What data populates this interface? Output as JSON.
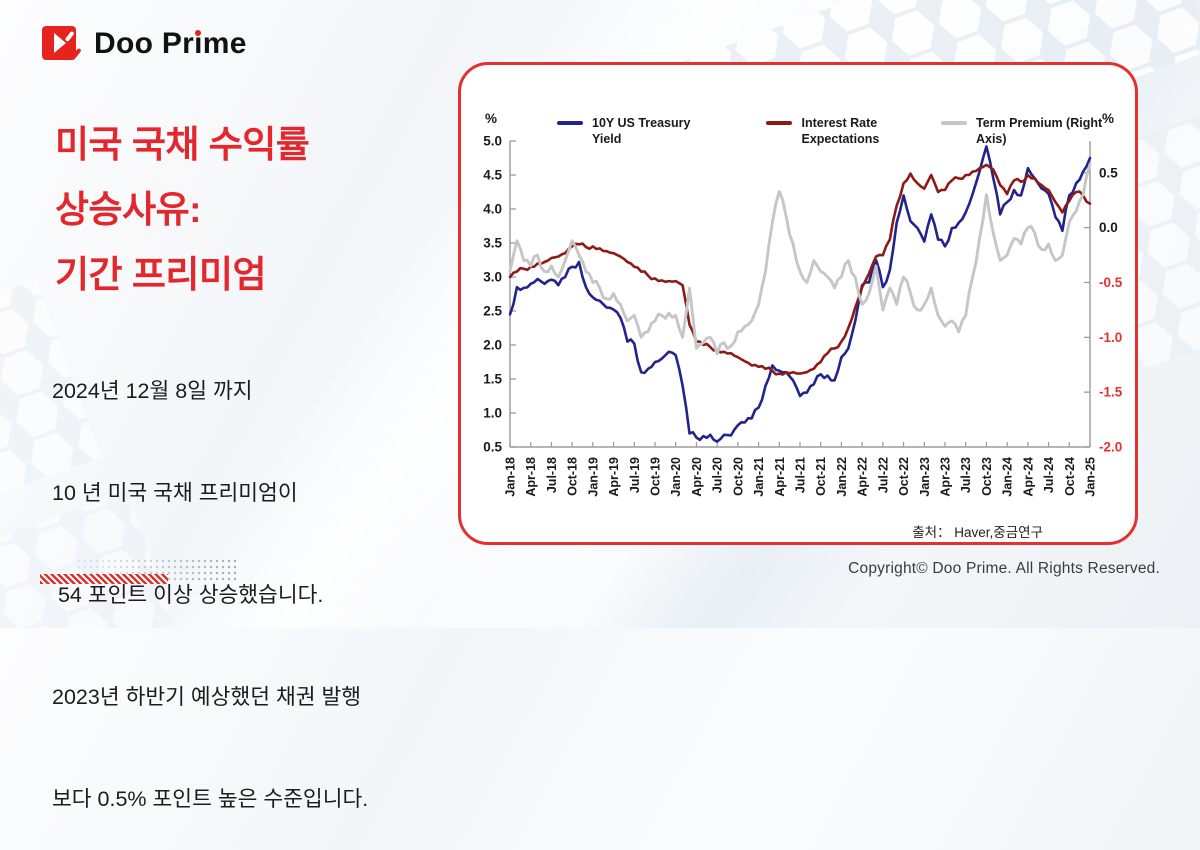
{
  "brand": {
    "name_parts": {
      "before": "Doo Pr",
      "i": "i",
      "after": "me"
    }
  },
  "headline": {
    "line1": "미국 국채 수익률",
    "line2": "상승사유:",
    "line3": "기간 프리미엄"
  },
  "description": {
    "lines": [
      "2024년 12월 8일 까지",
      "10 년 미국 국채 프리미엄이",
      " 54 포인트 이상 상승했습니다.",
      "2023년 하반기 예상했던 채권 발행",
      "보다 0.5% 포인트 높은 수준입니다."
    ]
  },
  "chart": {
    "source": "출처： Haver,중금연구",
    "accent_border_color": "#e43030"
  },
  "chart_data": {
    "type": "line",
    "title": "",
    "x_start": "Jan-18",
    "x_end": "Jan-25",
    "x_tick_labels": [
      "Jan-18",
      "Apr-18",
      "Jul-18",
      "Oct-18",
      "Jan-19",
      "Apr-19",
      "Jul-19",
      "Oct-19",
      "Jan-20",
      "Apr-20",
      "Jul-20",
      "Oct-20",
      "Jan-21",
      "Apr-21",
      "Jul-21",
      "Oct-21",
      "Jan-22",
      "Apr-22",
      "Jul-22",
      "Oct-22",
      "Jan-23",
      "Apr-23",
      "Jul-23",
      "Oct-23",
      "Jan-24",
      "Apr-24",
      "Jul-24",
      "Oct-24",
      "Jan-25"
    ],
    "months_per_tick": 3,
    "grid": false,
    "legend_position": "top",
    "left_axis": {
      "unit": "%",
      "min": 0.5,
      "max": 5.0,
      "ticks": [
        "5.0",
        "4.5",
        "4.0",
        "3.5",
        "3.0",
        "2.5",
        "2.0",
        "1.5",
        "1.0",
        "0.5"
      ],
      "tick_values": [
        5.0,
        4.5,
        4.0,
        3.5,
        3.0,
        2.5,
        2.0,
        1.5,
        1.0,
        0.5
      ],
      "tick_color": "#1a1a1a"
    },
    "right_axis": {
      "unit": "%",
      "min": -2.0,
      "max": 0.79,
      "ticks": [
        {
          "label": "0.5",
          "value": 0.5,
          "color": "#1a1a1a"
        },
        {
          "label": "0.0",
          "value": 0.0,
          "color": "#1a1a1a"
        },
        {
          "label": "-0.5",
          "value": -0.5,
          "color": "#e5312b"
        },
        {
          "label": "-1.0",
          "value": -1.0,
          "color": "#e5312b"
        },
        {
          "label": "-1.5",
          "value": -1.5,
          "color": "#e5312b"
        },
        {
          "label": "-2.0",
          "value": -2.0,
          "color": "#e5312b"
        }
      ]
    },
    "series": [
      {
        "name": "10Y US Treasury Yield",
        "axis": "left",
        "color": "#23238e",
        "width": 2.6,
        "values": [
          2.45,
          2.85,
          2.84,
          2.9,
          2.97,
          2.9,
          2.96,
          2.88,
          3.0,
          3.15,
          3.22,
          2.85,
          2.7,
          2.65,
          2.55,
          2.52,
          2.4,
          2.05,
          2.02,
          1.6,
          1.65,
          1.75,
          1.8,
          1.9,
          1.85,
          1.4,
          0.7,
          0.64,
          0.66,
          0.68,
          0.58,
          0.68,
          0.67,
          0.82,
          0.86,
          0.92,
          1.08,
          1.4,
          1.7,
          1.62,
          1.6,
          1.48,
          1.25,
          1.3,
          1.42,
          1.57,
          1.55,
          1.48,
          1.82,
          1.95,
          2.35,
          2.88,
          2.92,
          3.25,
          2.85,
          3.1,
          3.8,
          4.2,
          3.82,
          3.72,
          3.52,
          3.92,
          3.55,
          3.45,
          3.72,
          3.8,
          3.95,
          4.22,
          4.55,
          4.92,
          4.45,
          3.92,
          4.1,
          4.28,
          4.2,
          4.6,
          4.45,
          4.3,
          4.22,
          3.88,
          3.68,
          4.2,
          4.38,
          4.55,
          4.75
        ]
      },
      {
        "name": "Interest Rate Expectations",
        "axis": "left",
        "color": "#8e1a15",
        "width": 2.6,
        "values": [
          3.0,
          3.08,
          3.12,
          3.15,
          3.2,
          3.22,
          3.28,
          3.3,
          3.35,
          3.45,
          3.48,
          3.44,
          3.45,
          3.42,
          3.38,
          3.35,
          3.3,
          3.22,
          3.15,
          3.08,
          3.02,
          2.98,
          2.95,
          2.94,
          2.94,
          2.88,
          2.3,
          2.05,
          2.0,
          1.97,
          1.93,
          1.9,
          1.88,
          1.82,
          1.76,
          1.7,
          1.68,
          1.65,
          1.62,
          1.58,
          1.6,
          1.6,
          1.58,
          1.6,
          1.65,
          1.75,
          1.88,
          1.95,
          2.05,
          2.25,
          2.55,
          2.85,
          3.05,
          3.3,
          3.32,
          3.55,
          4.05,
          4.38,
          4.52,
          4.38,
          4.3,
          4.5,
          4.25,
          4.28,
          4.42,
          4.45,
          4.5,
          4.55,
          4.6,
          4.65,
          4.58,
          4.35,
          4.22,
          4.42,
          4.4,
          4.5,
          4.45,
          4.35,
          4.28,
          4.1,
          3.95,
          4.12,
          4.25,
          4.2,
          4.08
        ]
      },
      {
        "name": "Term Premium (Right Axis)",
        "axis": "right",
        "color": "#c6c6c6",
        "width": 2.9,
        "values": [
          -0.4,
          -0.12,
          -0.3,
          -0.35,
          -0.25,
          -0.4,
          -0.35,
          -0.45,
          -0.3,
          -0.12,
          -0.25,
          -0.4,
          -0.5,
          -0.55,
          -0.65,
          -0.6,
          -0.7,
          -0.85,
          -0.8,
          -1.0,
          -0.95,
          -0.85,
          -0.8,
          -0.78,
          -0.8,
          -1.0,
          -0.55,
          -1.1,
          -1.05,
          -1.0,
          -1.15,
          -1.05,
          -1.08,
          -0.95,
          -0.9,
          -0.85,
          -0.7,
          -0.4,
          0.05,
          0.33,
          0.1,
          -0.15,
          -0.4,
          -0.5,
          -0.3,
          -0.4,
          -0.45,
          -0.55,
          -0.45,
          -0.3,
          -0.45,
          -0.7,
          -0.6,
          -0.35,
          -0.75,
          -0.55,
          -0.7,
          -0.45,
          -0.6,
          -0.75,
          -0.7,
          -0.55,
          -0.8,
          -0.9,
          -0.85,
          -0.95,
          -0.8,
          -0.45,
          -0.1,
          0.3,
          -0.05,
          -0.3,
          -0.25,
          -0.1,
          -0.15,
          0.0,
          -0.05,
          -0.2,
          -0.15,
          -0.3,
          -0.25,
          0.05,
          0.15,
          0.3,
          0.58
        ]
      }
    ]
  },
  "footer": {
    "copyright": "Copyright© Doo Prime. All Rights Reserved."
  }
}
